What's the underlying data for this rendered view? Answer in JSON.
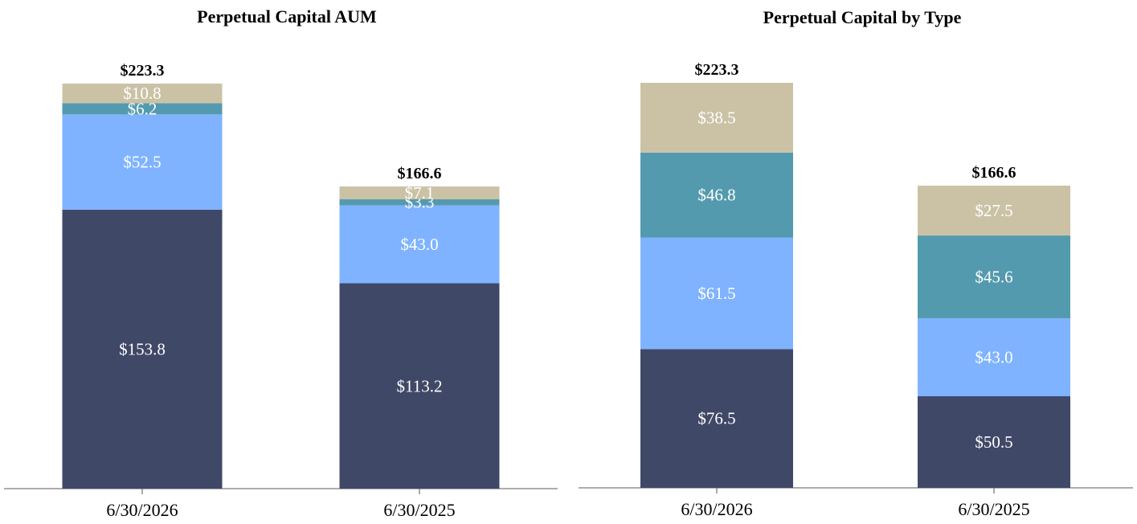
{
  "colors": {
    "segment_1": "#404868",
    "segment_2": "#7fb3ff",
    "segment_3": "#549aae",
    "segment_4": "#cbc2a6",
    "axis": "#7a7a7a",
    "label_text": "#ffffff"
  },
  "chart_data": [
    {
      "type": "bar",
      "stacked": true,
      "title": "Perpetual Capital AUM",
      "categories": [
        "6/30/2026",
        "6/30/2025"
      ],
      "series": [
        {
          "values": [
            153.8,
            113.2
          ],
          "labels": [
            "$153.8",
            "$113.2"
          ]
        },
        {
          "values": [
            52.5,
            43.0
          ],
          "labels": [
            "$52.5",
            "$43.0"
          ]
        },
        {
          "values": [
            6.2,
            3.3
          ],
          "labels": [
            "$6.2",
            "$3.3"
          ]
        },
        {
          "values": [
            10.8,
            7.1
          ],
          "labels": [
            "$10.8",
            "$7.1"
          ]
        }
      ],
      "totals": [
        223.3,
        166.6
      ],
      "total_labels": [
        "$223.3",
        "$166.6"
      ],
      "ylim": [
        0,
        223.3
      ],
      "grid": false,
      "legend": "none"
    },
    {
      "type": "bar",
      "stacked": true,
      "title": "Perpetual Capital by Type",
      "categories": [
        "6/30/2026",
        "6/30/2025"
      ],
      "series": [
        {
          "values": [
            76.5,
            50.5
          ],
          "labels": [
            "$76.5",
            "$50.5"
          ]
        },
        {
          "values": [
            61.5,
            43.0
          ],
          "labels": [
            "$61.5",
            "$43.0"
          ]
        },
        {
          "values": [
            46.8,
            45.6
          ],
          "labels": [
            "$46.8",
            "$45.6"
          ]
        },
        {
          "values": [
            38.5,
            27.5
          ],
          "labels": [
            "$38.5",
            "$27.5"
          ]
        }
      ],
      "totals": [
        223.3,
        166.6
      ],
      "total_labels": [
        "$223.3",
        "$166.6"
      ],
      "ylim": [
        0,
        223.3
      ],
      "grid": false,
      "legend": "none"
    }
  ]
}
